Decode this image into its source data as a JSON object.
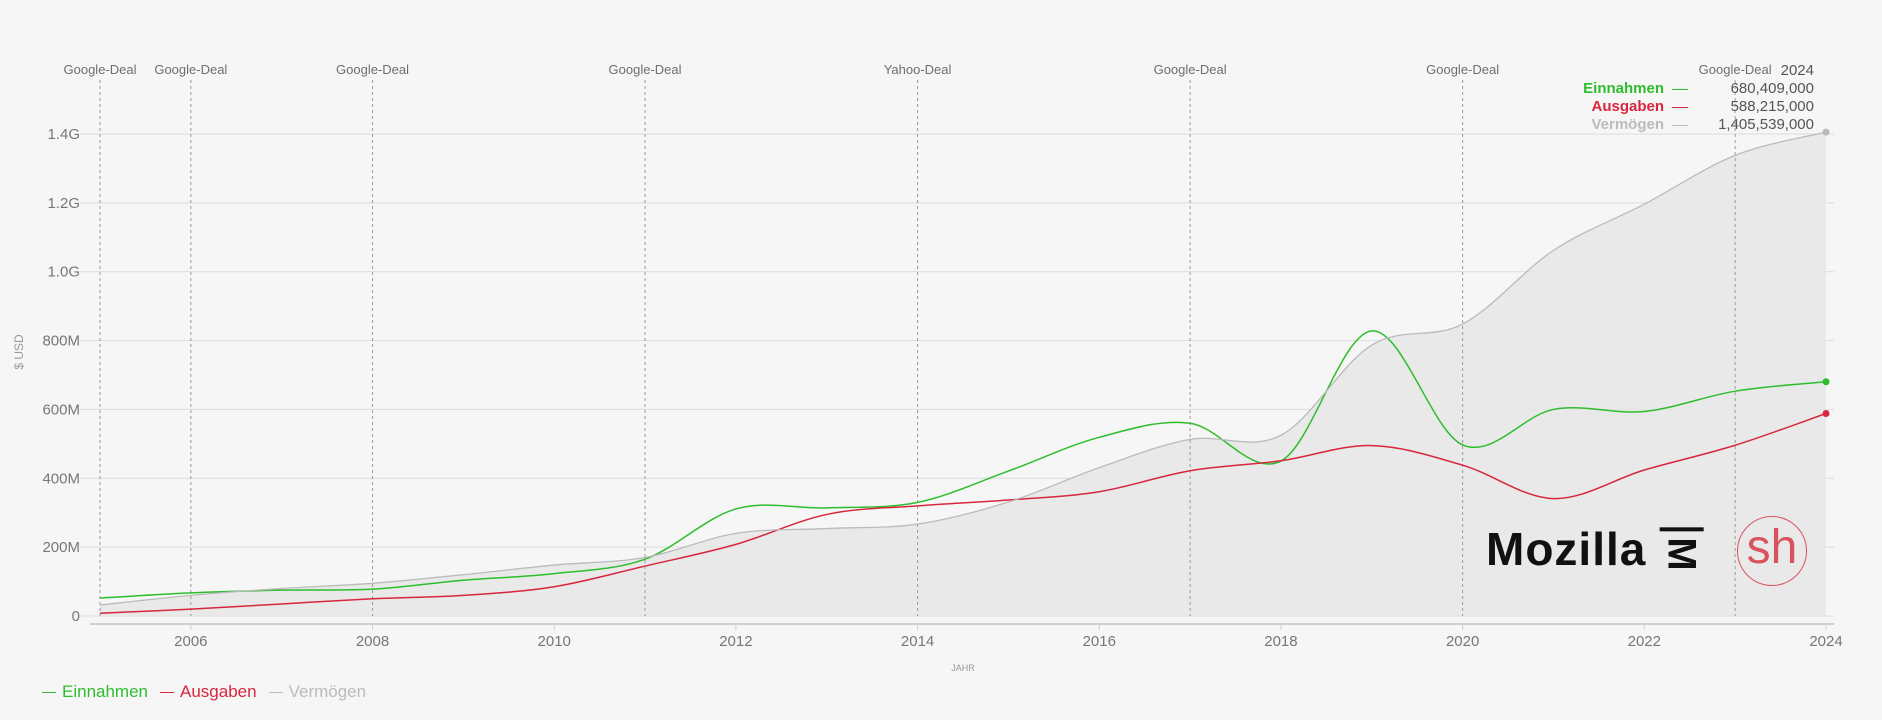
{
  "chart_data": {
    "type": "line",
    "x": [
      2005,
      2006,
      2007,
      2008,
      2009,
      2010,
      2011,
      2012,
      2013,
      2014,
      2015,
      2016,
      2017,
      2018,
      2019,
      2020,
      2021,
      2022,
      2023,
      2024
    ],
    "series": [
      {
        "name": "Einnahmen",
        "color": "#2dbd2d",
        "values": [
          52000000,
          67000000,
          75000000,
          78000000,
          104000000,
          123000000,
          165000000,
          311000000,
          314000000,
          330000000,
          421000000,
          519000000,
          560000000,
          450000000,
          828000000,
          497000000,
          600000000,
          594000000,
          653000000,
          680409000
        ]
      },
      {
        "name": "Ausgaben",
        "color": "#d7263d",
        "values": [
          8000000,
          20000000,
          35000000,
          50000000,
          60000000,
          85000000,
          145000000,
          208000000,
          295000000,
          320000000,
          337000000,
          361000000,
          422000000,
          451000000,
          495000000,
          438000000,
          341000000,
          424000000,
          496000000,
          588215000
        ]
      },
      {
        "name": "Vermögen",
        "color": "#bbbbbb",
        "values": [
          32000000,
          60000000,
          80000000,
          95000000,
          120000000,
          148000000,
          170000000,
          240000000,
          254000000,
          267000000,
          331000000,
          431000000,
          513000000,
          525000000,
          787000000,
          848000000,
          1062000000,
          1196000000,
          1338000000,
          1405539000
        ]
      }
    ],
    "xlabel": "JAHR",
    "ylabel": "$ USD",
    "ylim": [
      0,
      1400000000
    ],
    "xlim": [
      2005,
      2024
    ],
    "grid": true,
    "legend_position": "bottom-left",
    "x_tick_labels": [
      "2006",
      "2008",
      "2010",
      "2012",
      "2014",
      "2016",
      "2018",
      "2020",
      "2022",
      "2024"
    ],
    "y_tick_labels": [
      "0",
      "200M",
      "400M",
      "600M",
      "800M",
      "1.0G",
      "1.2G",
      "1.4G"
    ],
    "annotations": [
      {
        "x": 2005,
        "label": "Google-Deal"
      },
      {
        "x": 2006,
        "label": "Google-Deal"
      },
      {
        "x": 2008,
        "label": "Google-Deal"
      },
      {
        "x": 2011,
        "label": "Google-Deal"
      },
      {
        "x": 2014,
        "label": "Yahoo-Deal"
      },
      {
        "x": 2017,
        "label": "Google-Deal"
      },
      {
        "x": 2020,
        "label": "Google-Deal"
      },
      {
        "x": 2023,
        "label": "Google-Deal"
      }
    ]
  },
  "tooltip": {
    "year": "2024",
    "rows": [
      {
        "name": "Einnahmen",
        "value": "680,409,000",
        "color": "#2dbd2d"
      },
      {
        "name": "Ausgaben",
        "value": "588,215,000",
        "color": "#d7263d"
      },
      {
        "name": "Vermögen",
        "value": "1,405,539,000",
        "color": "#bbbbbb"
      }
    ]
  },
  "logos": {
    "mozilla_text": "Mozilla",
    "mozilla_mark": "M",
    "sh_text": "sh"
  }
}
